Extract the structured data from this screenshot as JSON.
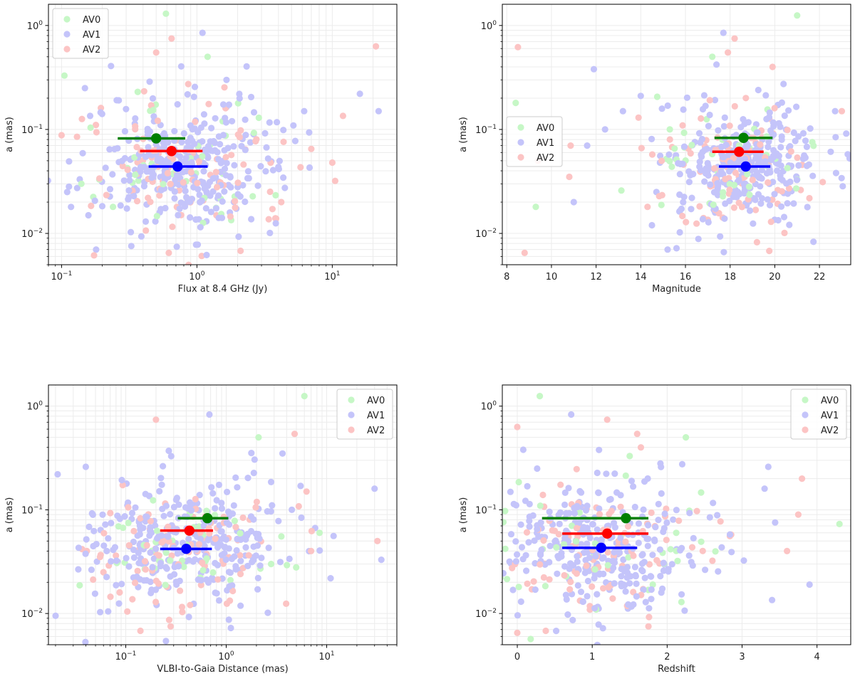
{
  "colors": {
    "AV0": "#c6f7c6",
    "AV1": "#c4c4fa",
    "AV2": "#fcc4c4",
    "AV0_mean": "#007f00",
    "AV1_mean": "#0000ff",
    "AV2_mean": "#ff0000",
    "grid": "#ececec",
    "frame": "#000000"
  },
  "chart_data": [
    {
      "type": "scatter",
      "panel": "top-left",
      "xscale": "log",
      "yscale": "log",
      "xlim": [
        0.08,
        30
      ],
      "ylim": [
        0.005,
        1.6
      ],
      "xlabel": "Flux at 8.4 GHz (Jy)",
      "ylabel": "a (mas)",
      "xticks": [
        {
          "v": 0.1,
          "b": "10",
          "e": "−1"
        },
        {
          "v": 1,
          "b": "10",
          "e": "0"
        },
        {
          "v": 10,
          "b": "10",
          "e": "1"
        }
      ],
      "yticks": [
        {
          "v": 0.01,
          "b": "10",
          "e": "−2"
        },
        {
          "v": 0.1,
          "b": "10",
          "e": "−1"
        },
        {
          "v": 1,
          "b": "10",
          "e": "0"
        }
      ],
      "legend": {
        "position": "upper-left",
        "labels": [
          "AV0",
          "AV1",
          "AV2"
        ]
      },
      "cloud": {
        "x_center": 0.8,
        "x_spread": 0.35,
        "y_center": 0.045,
        "y_spread": 0.32
      },
      "series": [
        {
          "name": "AV0",
          "count": 45,
          "points": [
            [
              0.59,
              1.3
            ],
            [
              1.2,
              0.5
            ],
            [
              0.105,
              0.33
            ],
            [
              0.14,
              0.03
            ],
            [
              0.19,
              0.033
            ],
            [
              0.24,
              0.018
            ],
            [
              1.55,
              0.12
            ]
          ]
        },
        {
          "name": "AV1",
          "count": 330,
          "points": [
            [
              1.1,
              0.85
            ],
            [
              22,
              0.15
            ],
            [
              16,
              0.22
            ],
            [
              6.2,
              0.15
            ],
            [
              0.11,
              0.025
            ],
            [
              0.18,
              0.007
            ],
            [
              6.8,
              0.043
            ]
          ]
        },
        {
          "name": "AV2",
          "count": 110,
          "points": [
            [
              0.5,
              0.55
            ],
            [
              0.65,
              0.75
            ],
            [
              21,
              0.63
            ],
            [
              0.1,
              0.088
            ],
            [
              0.13,
              0.085
            ],
            [
              12,
              0.135
            ],
            [
              10,
              0.048
            ],
            [
              10.5,
              0.032
            ],
            [
              7,
              0.065
            ],
            [
              2.1,
              0.0068
            ],
            [
              0.62,
              0.0065
            ],
            [
              4.2,
              0.02
            ],
            [
              3.8,
              0.014
            ]
          ]
        }
      ],
      "means": [
        {
          "name": "AV0",
          "x": 0.5,
          "y": 0.082,
          "xlo": 0.26,
          "xhi": 0.82
        },
        {
          "name": "AV2",
          "x": 0.65,
          "y": 0.062,
          "xlo": 0.38,
          "xhi": 1.1
        },
        {
          "name": "AV1",
          "x": 0.72,
          "y": 0.044,
          "xlo": 0.44,
          "xhi": 1.2
        }
      ]
    },
    {
      "type": "scatter",
      "panel": "top-right",
      "xscale": "linear",
      "yscale": "log",
      "xlim": [
        7.8,
        23.4
      ],
      "ylim": [
        0.005,
        1.6
      ],
      "xlabel": "Magnitude",
      "ylabel": "a (mas)",
      "xticks": [
        {
          "v": 8,
          "t": "8"
        },
        {
          "v": 10,
          "t": "10"
        },
        {
          "v": 12,
          "t": "12"
        },
        {
          "v": 14,
          "t": "14"
        },
        {
          "v": 16,
          "t": "16"
        },
        {
          "v": 18,
          "t": "18"
        },
        {
          "v": 20,
          "t": "20"
        },
        {
          "v": 22,
          "t": "22"
        }
      ],
      "yticks": [
        {
          "v": 0.01,
          "b": "10",
          "e": "−2"
        },
        {
          "v": 0.1,
          "b": "10",
          "e": "−1"
        },
        {
          "v": 1,
          "b": "10",
          "e": "0"
        }
      ],
      "legend": {
        "position": "center-left",
        "labels": [
          "AV0",
          "AV1",
          "AV2"
        ]
      },
      "cloud": {
        "x_center": 18.6,
        "x_spread": 1.8,
        "y_center": 0.045,
        "y_spread": 0.3
      },
      "series": [
        {
          "name": "AV0",
          "count": 45,
          "points": [
            [
              21,
              1.25
            ],
            [
              17.2,
              0.5
            ],
            [
              8.4,
              0.18
            ],
            [
              9.3,
              0.018
            ],
            [
              15.3,
              0.1
            ]
          ]
        },
        {
          "name": "AV1",
          "count": 330,
          "points": [
            [
              17.7,
              0.85
            ],
            [
              11.9,
              0.38
            ],
            [
              14,
              0.21
            ],
            [
              13.2,
              0.15
            ],
            [
              12.4,
              0.1
            ],
            [
              11.6,
              0.07
            ],
            [
              11,
              0.02
            ],
            [
              14.7,
              0.025
            ],
            [
              15.2,
              0.007
            ],
            [
              15.6,
              0.0072
            ],
            [
              14.5,
              0.012
            ],
            [
              22.7,
              0.15
            ]
          ]
        },
        {
          "name": "AV2",
          "count": 110,
          "points": [
            [
              8.5,
              0.62
            ],
            [
              8.8,
              0.0065
            ],
            [
              18.2,
              0.75
            ],
            [
              17.9,
              0.55
            ],
            [
              19.9,
              0.4
            ],
            [
              9.4,
              0.05
            ],
            [
              10.8,
              0.035
            ],
            [
              23,
              0.15
            ],
            [
              13.9,
              0.13
            ],
            [
              14.3,
              0.018
            ]
          ]
        }
      ],
      "means": [
        {
          "name": "AV0",
          "x": 18.6,
          "y": 0.083,
          "xlo": 17.3,
          "xhi": 19.9
        },
        {
          "name": "AV2",
          "x": 18.4,
          "y": 0.061,
          "xlo": 17.2,
          "xhi": 19.5
        },
        {
          "name": "AV1",
          "x": 18.7,
          "y": 0.044,
          "xlo": 17.5,
          "xhi": 19.8
        }
      ]
    },
    {
      "type": "scatter",
      "panel": "bottom-left",
      "xscale": "log",
      "yscale": "log",
      "xlim": [
        0.017,
        50
      ],
      "ylim": [
        0.005,
        1.6
      ],
      "xlabel": "VLBI-to-Gaia Distance (mas)",
      "ylabel": "a (mas)",
      "xticks": [
        {
          "v": 0.1,
          "b": "10",
          "e": "−1"
        },
        {
          "v": 1,
          "b": "10",
          "e": "0"
        },
        {
          "v": 10,
          "b": "10",
          "e": "1"
        }
      ],
      "yticks": [
        {
          "v": 0.01,
          "b": "10",
          "e": "−2"
        },
        {
          "v": 0.1,
          "b": "10",
          "e": "−1"
        },
        {
          "v": 1,
          "b": "10",
          "e": "0"
        }
      ],
      "legend": {
        "position": "upper-right",
        "labels": [
          "AV0",
          "AV1",
          "AV2"
        ]
      },
      "cloud": {
        "x_center": 0.4,
        "x_spread": 0.48,
        "y_center": 0.045,
        "y_spread": 0.32
      },
      "series": [
        {
          "name": "AV0",
          "count": 45,
          "points": [
            [
              6,
              1.25
            ],
            [
              2.1,
              0.5
            ],
            [
              8.5,
              0.06
            ],
            [
              2.8,
              0.03
            ]
          ]
        },
        {
          "name": "AV1",
          "count": 330,
          "points": [
            [
              0.68,
              0.83
            ],
            [
              0.021,
              0.22
            ],
            [
              0.04,
              0.26
            ],
            [
              0.02,
              0.0095
            ],
            [
              0.034,
              0.043
            ],
            [
              30,
              0.16
            ],
            [
              35,
              0.033
            ],
            [
              5.5,
              0.17
            ],
            [
              4.5,
              0.1
            ]
          ]
        },
        {
          "name": "AV2",
          "count": 110,
          "points": [
            [
              0.2,
              0.74
            ],
            [
              4.8,
              0.54
            ],
            [
              0.041,
              0.04
            ],
            [
              0.14,
              0.0068
            ],
            [
              0.28,
              0.0075
            ],
            [
              7,
              0.04
            ],
            [
              32,
              0.05
            ],
            [
              6.3,
              0.15
            ]
          ]
        }
      ],
      "means": [
        {
          "name": "AV0",
          "x": 0.65,
          "y": 0.083,
          "xlo": 0.33,
          "xhi": 1.05
        },
        {
          "name": "AV2",
          "x": 0.43,
          "y": 0.063,
          "xlo": 0.22,
          "xhi": 0.74
        },
        {
          "name": "AV1",
          "x": 0.4,
          "y": 0.042,
          "xlo": 0.22,
          "xhi": 0.72
        }
      ]
    },
    {
      "type": "scatter",
      "panel": "bottom-right",
      "xscale": "linear",
      "yscale": "log",
      "xlim": [
        -0.2,
        4.45
      ],
      "ylim": [
        0.005,
        1.6
      ],
      "xlabel": "Redshift",
      "ylabel": "a (mas)",
      "xticks": [
        {
          "v": 0,
          "t": "0"
        },
        {
          "v": 1,
          "t": "1"
        },
        {
          "v": 2,
          "t": "2"
        },
        {
          "v": 3,
          "t": "3"
        },
        {
          "v": 4,
          "t": "4"
        }
      ],
      "yticks": [
        {
          "v": 0.01,
          "b": "10",
          "e": "−2"
        },
        {
          "v": 0.1,
          "b": "10",
          "e": "−1"
        },
        {
          "v": 1,
          "b": "10",
          "e": "0"
        }
      ],
      "legend": {
        "position": "upper-right",
        "labels": [
          "AV0",
          "AV1",
          "AV2"
        ]
      },
      "cloud": {
        "x_center": 1.1,
        "x_spread": 0.75,
        "y_center": 0.045,
        "y_spread": 0.32
      },
      "series": [
        {
          "name": "AV0",
          "count": 45,
          "points": [
            [
              0.3,
              1.25
            ],
            [
              2.25,
              0.5
            ],
            [
              4.3,
              0.073
            ],
            [
              0.02,
              0.185
            ],
            [
              0.02,
              0.018
            ],
            [
              1.5,
              0.33
            ]
          ]
        },
        {
          "name": "AV1",
          "count": 330,
          "points": [
            [
              0.72,
              0.83
            ],
            [
              0.08,
              0.38
            ],
            [
              3.9,
              0.019
            ],
            [
              3.4,
              0.0135
            ],
            [
              3.35,
              0.26
            ],
            [
              3.3,
              0.16
            ],
            [
              0.05,
              0.013
            ]
          ]
        },
        {
          "name": "AV2",
          "count": 110,
          "points": [
            [
              0,
              0.63
            ],
            [
              1.2,
              0.74
            ],
            [
              1.6,
              0.54
            ],
            [
              1.65,
              0.4
            ],
            [
              0,
              0.0065
            ],
            [
              0.38,
              0.0068
            ],
            [
              1.75,
              0.0075
            ],
            [
              3.75,
              0.09
            ],
            [
              3.6,
              0.04
            ],
            [
              3.8,
              0.2
            ]
          ]
        }
      ],
      "means": [
        {
          "name": "AV0",
          "x": 1.45,
          "y": 0.083,
          "xlo": 0.33,
          "xhi": 1.75
        },
        {
          "name": "AV2",
          "x": 1.2,
          "y": 0.059,
          "xlo": 0.6,
          "xhi": 1.75
        },
        {
          "name": "AV1",
          "x": 1.12,
          "y": 0.043,
          "xlo": 0.6,
          "xhi": 1.6
        }
      ]
    }
  ]
}
